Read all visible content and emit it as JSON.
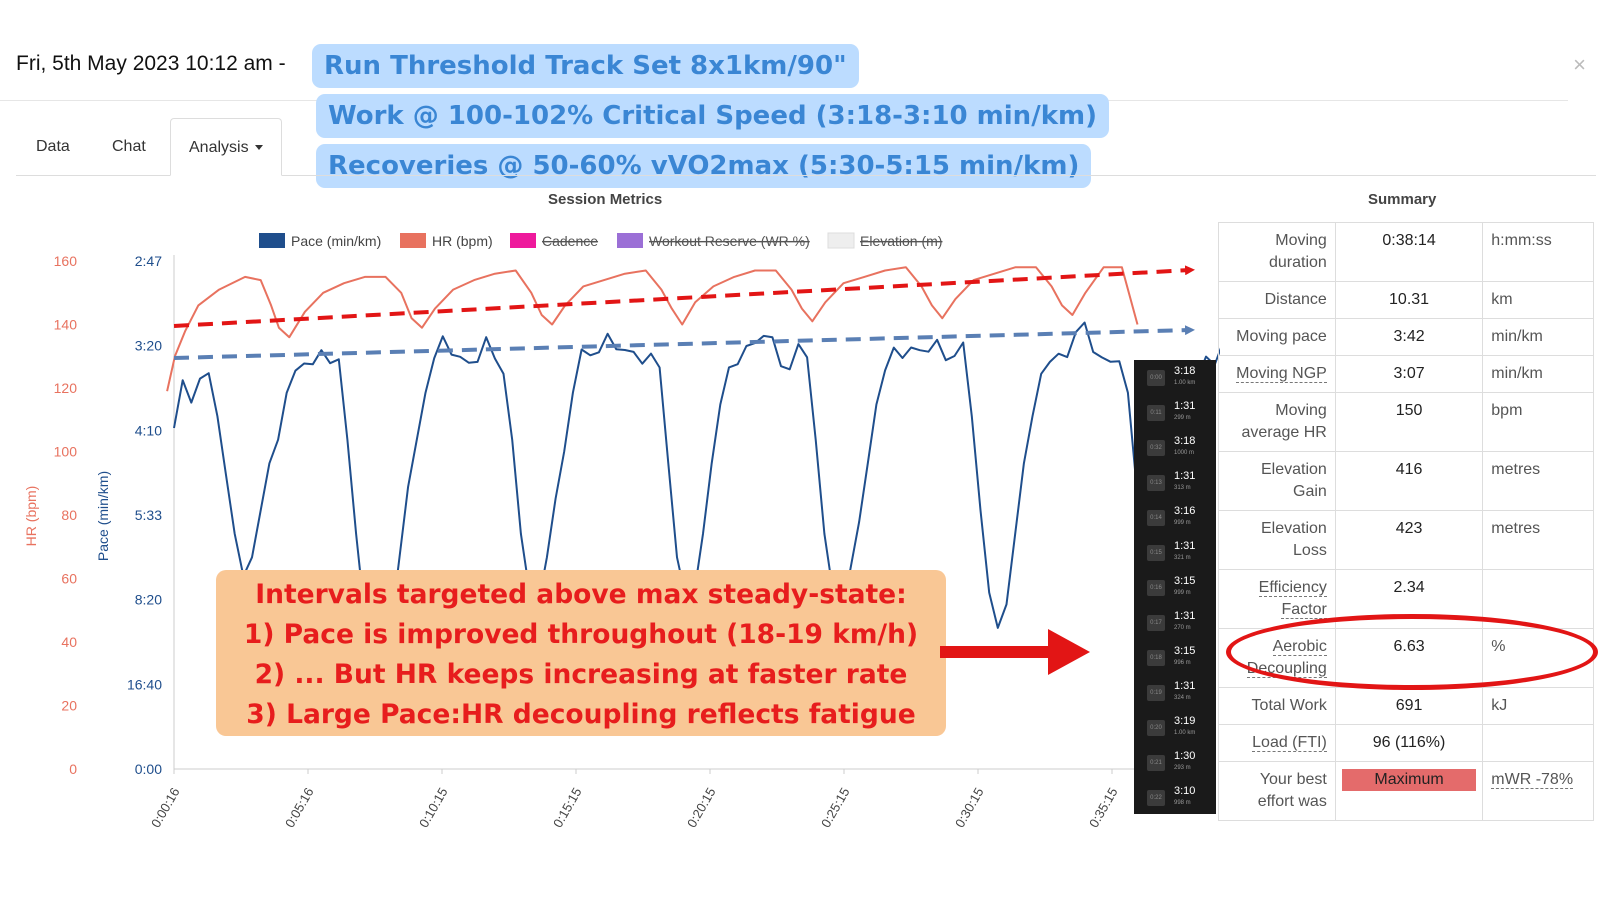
{
  "header": {
    "date": "Fri, 5th May 2023 10:12 am -",
    "close_icon": "×",
    "title_lines": [
      "Run Threshold Track Set 8x1km/90\"",
      "Work @ 100-102% Critical Speed (3:18-3:10 min/km)",
      "Recoveries @ 50-60% vVO2max (5:30-5:15 min/km)"
    ]
  },
  "tabs": [
    {
      "label": "Data"
    },
    {
      "label": "Chat"
    },
    {
      "label": "Analysis"
    }
  ],
  "sections": {
    "metrics_title": "Session Metrics",
    "summary_title": "Summary"
  },
  "chart_data": {
    "type": "line",
    "x_ticks": [
      "0:00:16",
      "0:05:16",
      "0:10:15",
      "0:15:15",
      "0:20:15",
      "0:25:15",
      "0:30:15",
      "0:35:15"
    ],
    "legend": [
      {
        "name": "Pace (min/km)",
        "color": "#1f4e8c",
        "hidden": false
      },
      {
        "name": "HR (bpm)",
        "color": "#e8725f",
        "hidden": false
      },
      {
        "name": "Cadence",
        "color": "#ee1a9c",
        "hidden": true
      },
      {
        "name": "Workout Reserve (WR %)",
        "color": "#9b6fd6",
        "hidden": true
      },
      {
        "name": "Elevation (m)",
        "color": "#eeeeee",
        "hidden": true
      }
    ],
    "y_left": {
      "label": "HR (bpm)",
      "ticks": [
        0,
        20,
        40,
        60,
        80,
        100,
        120,
        140,
        160
      ],
      "range": [
        0,
        160
      ],
      "color": "#e8725f"
    },
    "y_pace": {
      "label": "Pace (min/km)",
      "ticks": [
        "0:00",
        "16:40",
        "8:20",
        "5:33",
        "4:10",
        "3:20",
        "2:47"
      ],
      "speed_kmh": [
        0,
        3.6,
        7.2,
        10.8,
        14.4,
        18,
        21.6
      ],
      "color": "#1f4e8c"
    },
    "x_range_seconds": [
      16,
      2230
    ],
    "hr_series": {
      "name": "HR (bpm)",
      "minutes": [
        0,
        0.3,
        0.7,
        1.2,
        2.0,
        3.0,
        3.6,
        4.0,
        4.3,
        4.7,
        5.3,
        6.0,
        6.8,
        7.6,
        8.4,
        9.0,
        9.4,
        9.8,
        10.3,
        11.0,
        11.8,
        12.6,
        13.4,
        14.0,
        14.4,
        14.8,
        15.3,
        16.0,
        16.8,
        17.6,
        18.4,
        19.0,
        19.4,
        19.8,
        20.3,
        21.0,
        21.8,
        22.6,
        23.4,
        24.0,
        24.4,
        24.8,
        25.3,
        26.0,
        26.8,
        27.6,
        28.4,
        29.0,
        29.4,
        29.8,
        30.3,
        31.0,
        31.8,
        32.6,
        33.4,
        34.0,
        34.4,
        34.8,
        35.3,
        36.0,
        36.7,
        37.3
      ],
      "values": [
        119,
        130,
        138,
        146,
        151,
        155,
        154,
        146,
        139,
        136,
        144,
        150,
        153,
        155,
        155,
        150,
        142,
        139,
        145,
        151,
        154,
        156,
        157,
        150,
        143,
        140,
        146,
        152,
        154,
        156,
        157,
        151,
        145,
        140,
        147,
        152,
        155,
        157,
        157,
        151,
        145,
        141,
        147,
        153,
        155,
        157,
        158,
        152,
        146,
        142,
        148,
        154,
        156,
        158,
        158,
        152,
        146,
        143,
        150,
        158,
        158,
        140
      ]
    },
    "pace_series": {
      "name": "Pace (min/km)",
      "speed_kmh_sampled_every_20s": [
        14.5,
        16.5,
        16.1,
        16.3,
        16.5,
        15.0,
        12.5,
        10.0,
        8.2,
        9.0,
        11.0,
        13.0,
        14.0,
        16.0,
        16.5,
        17.0,
        17.5,
        17.7,
        17.6,
        17.4,
        14.0,
        10.0,
        6.5,
        4.0,
        4.0,
        6.0,
        9.0,
        12.0,
        14.0,
        16.0,
        17.3,
        17.9,
        18.0,
        17.6,
        17.3,
        17.5,
        17.8,
        17.5,
        17.2,
        14.0,
        10.0,
        7.5,
        7.0,
        9.0,
        11.5,
        13.5,
        16.0,
        17.3,
        17.8,
        18.1,
        18.3,
        18.0,
        17.5,
        17.5,
        17.8,
        17.6,
        17.0,
        13.0,
        9.0,
        7.3,
        7.5,
        10.0,
        13.0,
        15.5,
        17.0,
        17.8,
        17.8,
        18.0,
        18.4,
        18.0,
        17.6,
        17.2,
        17.7,
        17.6,
        14.0,
        10.0,
        7.5,
        7.0,
        8.5,
        10.5,
        13.0,
        15.5,
        17.0,
        17.5,
        17.6,
        17.7,
        18.0,
        18.2,
        17.8,
        17.3,
        17.6,
        18.0,
        15.0,
        11.0,
        7.5,
        6.0,
        7.0,
        10.0,
        13.0,
        15.0,
        16.8,
        17.4,
        17.6,
        18.0,
        18.3,
        18.6,
        18.0,
        17.4,
        17.6,
        17.5,
        16.0,
        12.0,
        8.5,
        7.0,
        7.0,
        9.0,
        12.0,
        14.5,
        16.5,
        17.8,
        17.2,
        17.6,
        18.4,
        19.0,
        18.5,
        17.4,
        17.4,
        17.7,
        15.0,
        11.0,
        8.0,
        7.5,
        10.0,
        13.5,
        16.0,
        17.7,
        17.6,
        17.4,
        17.8,
        18.0,
        17.9,
        18.1,
        17.9,
        18.3,
        18.1
      ]
    },
    "annotations": [
      "HR trend line",
      "Pace trend line"
    ]
  },
  "laps": [
    {
      "idx": "0:00",
      "time": "3:18",
      "dist": "1.00 km"
    },
    {
      "idx": "0:11",
      "time": "1:31",
      "dist": "299 m"
    },
    {
      "idx": "0:32",
      "time": "3:18",
      "dist": "1000 m"
    },
    {
      "idx": "0:13",
      "time": "1:31",
      "dist": "313 m"
    },
    {
      "idx": "0:14",
      "time": "3:16",
      "dist": "999 m"
    },
    {
      "idx": "0:15",
      "time": "1:31",
      "dist": "321 m"
    },
    {
      "idx": "0:16",
      "time": "3:15",
      "dist": "999 m"
    },
    {
      "idx": "0:17",
      "time": "1:31",
      "dist": "270 m"
    },
    {
      "idx": "0:18",
      "time": "3:15",
      "dist": "996 m"
    },
    {
      "idx": "0:19",
      "time": "1:31",
      "dist": "324 m"
    },
    {
      "idx": "0:20",
      "time": "3:19",
      "dist": "1.00 km"
    },
    {
      "idx": "0:21",
      "time": "1:30",
      "dist": "293 m"
    },
    {
      "idx": "0:22",
      "time": "3:10",
      "dist": "998 m"
    }
  ],
  "callout": [
    "Intervals targeted above max steady-state:",
    "1) Pace is improved throughout (18-19 km/h)",
    "2) ... But HR keeps increasing at faster rate",
    "3) Large Pace:HR decoupling reflects fatigue"
  ],
  "summary": [
    {
      "label": "Moving duration",
      "value": "0:38:14",
      "unit": "h:mm:ss"
    },
    {
      "label": "Distance",
      "value": "10.31",
      "unit": "km"
    },
    {
      "label": "Moving pace",
      "value": "3:42",
      "unit": "min/km"
    },
    {
      "label": "Moving NGP",
      "value": "3:07",
      "unit": "min/km",
      "dotted": true
    },
    {
      "label": "Moving average HR",
      "value": "150",
      "unit": "bpm"
    },
    {
      "label": "Elevation Gain",
      "value": "416",
      "unit": "metres"
    },
    {
      "label": "Elevation Loss",
      "value": "423",
      "unit": "metres"
    },
    {
      "label": "Efficiency Factor",
      "value": "2.34",
      "unit": "",
      "dotted": true
    },
    {
      "label": "Aerobic Decoupling",
      "value": "6.63",
      "unit": "%",
      "dotted": true
    },
    {
      "label": "Total Work",
      "value": "691",
      "unit": "kJ"
    },
    {
      "label": "Load (FTI)",
      "value": "96 (116%)",
      "unit": "",
      "dotted": true
    },
    {
      "label": "Your best effort was",
      "value": "Maximum",
      "unit": "mWR -78%",
      "badge": true,
      "dotted_unit": true
    }
  ],
  "colors": {
    "hr": "#e8725f",
    "pace": "#1f4e8c",
    "trend_hr": "#e21515",
    "trend_pace": "#5a7fb4",
    "pill_bg": "#bcdcff",
    "pill_text": "#3a86d4",
    "callout_bg": "#f9c795",
    "callout_text": "#e71d1d"
  }
}
